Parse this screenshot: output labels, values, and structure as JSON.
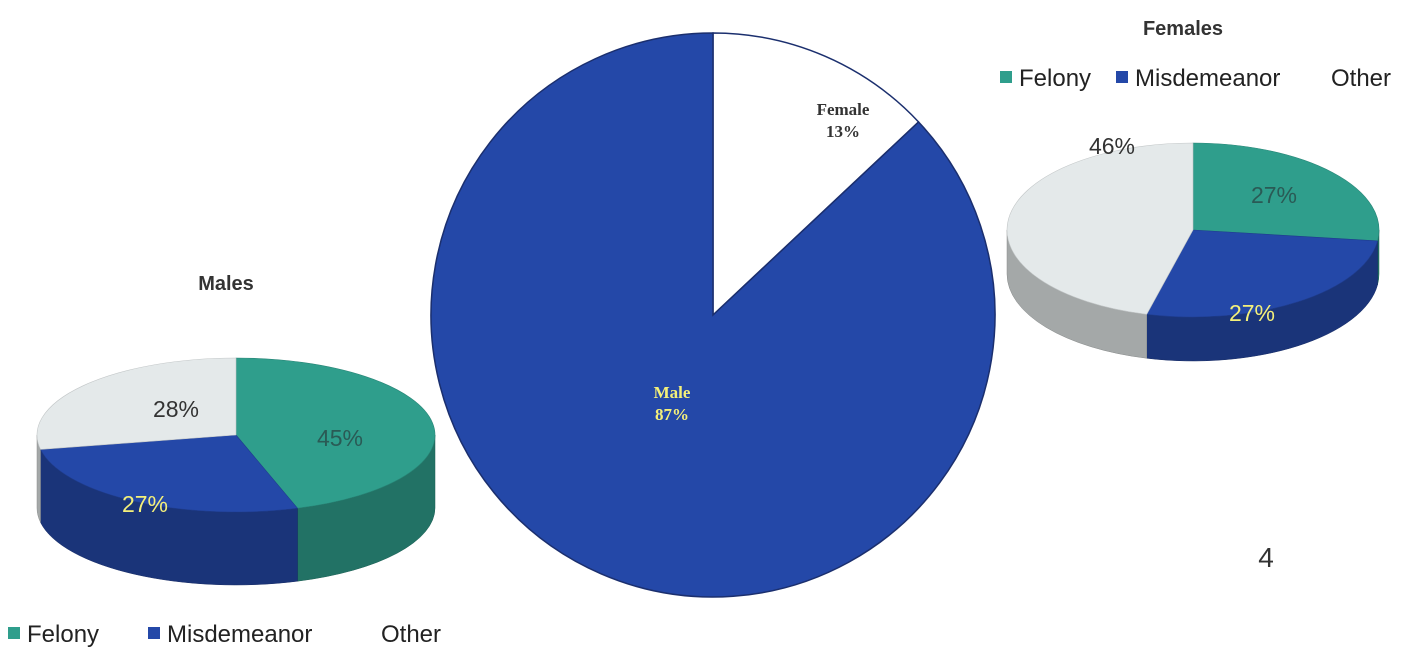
{
  "colors": {
    "felony": "#2f9e8c",
    "misdemeanor": "#2448a8",
    "other": "#e4e9ea",
    "male": "#2448a8",
    "female": "#ffffff",
    "label_light": "#f4f07a",
    "label_dark": "#333333"
  },
  "page_number": "4",
  "chart_data": [
    {
      "type": "pie",
      "title": "",
      "categories": [
        "Female",
        "Male"
      ],
      "values": [
        13,
        87
      ],
      "labels": [
        "Female\n13%",
        "Male\n87%"
      ]
    },
    {
      "type": "pie",
      "title": "Males",
      "categories": [
        "Felony",
        "Misdemeanor",
        "Other"
      ],
      "values": [
        45,
        27,
        28
      ],
      "labels": [
        "45%",
        "27%",
        "28%"
      ],
      "legend": [
        "Felony",
        "Misdemeanor",
        "Other"
      ],
      "legend_position": "bottom"
    },
    {
      "type": "pie",
      "title": "Females",
      "categories": [
        "Felony",
        "Misdemeanor",
        "Other"
      ],
      "values": [
        27,
        27,
        46
      ],
      "labels": [
        "27%",
        "27%",
        "46%"
      ],
      "legend": [
        "Felony",
        "Misdemeanor",
        "Other"
      ],
      "legend_position": "top"
    }
  ]
}
